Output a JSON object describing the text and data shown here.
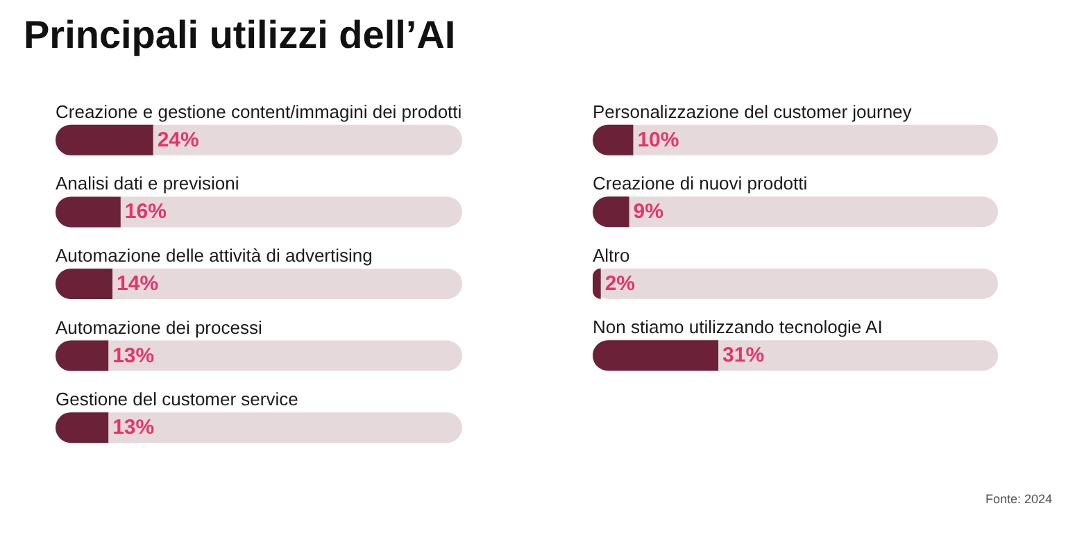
{
  "chart_data": [
    {
      "type": "bar",
      "title": "Principali utilizzi dell’AI",
      "orientation": "horizontal",
      "categories": [
        "Creazione e gestione content/immagini dei prodotti",
        "Analisi dati e previsioni",
        "Automazione delle attività di advertising",
        "Automazione dei processi",
        "Gestione del customer service"
      ],
      "values": [
        24,
        16,
        14,
        13,
        13
      ],
      "value_labels": [
        "24%",
        "16%",
        "14%",
        "13%",
        "13%"
      ],
      "color": "#6b2238",
      "xlim": [
        0,
        100
      ],
      "tick_labels": "y",
      "grid": false
    },
    {
      "type": "bar",
      "orientation": "horizontal",
      "categories": [
        "Personalizzazione del customer journey",
        "Creazione di nuovi prodotti",
        "Altro",
        "Non stiamo utilizzando tecnologie AI"
      ],
      "values": [
        10,
        9,
        2,
        31
      ],
      "value_labels": [
        "10%",
        "9%",
        "2%",
        "31%"
      ],
      "color": "#6b2238",
      "xlim": [
        0,
        100
      ],
      "tick_labels": "y",
      "grid": false,
      "annotations": [
        "Fonte: 2024"
      ]
    }
  ]
}
